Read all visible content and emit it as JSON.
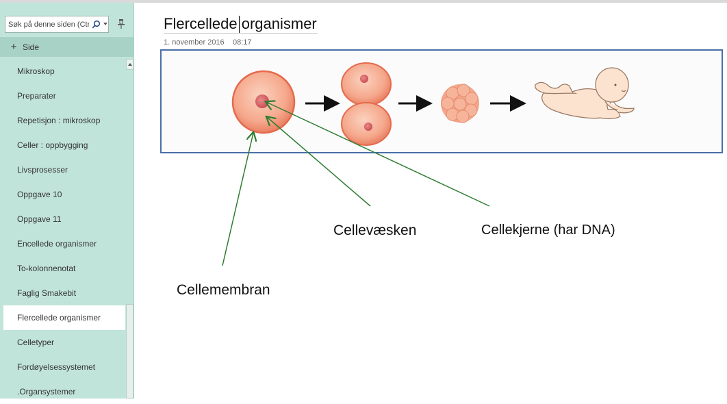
{
  "sidebar": {
    "search_placeholder": "Søk på denne siden (Ctrl+F)",
    "add_page_label": "Side",
    "pages": [
      {
        "label": "Mikroskop"
      },
      {
        "label": "Preparater"
      },
      {
        "label": "Repetisjon : mikroskop"
      },
      {
        "label": "Celler : oppbygging"
      },
      {
        "label": "Livsprosesser"
      },
      {
        "label": "Oppgave 10"
      },
      {
        "label": "Oppgave 11"
      },
      {
        "label": "Encellede organismer"
      },
      {
        "label": "To-kolonnenotat"
      },
      {
        "label": "Faglig Smakebit"
      },
      {
        "label": "Flercellede organismer"
      },
      {
        "label": "Celletyper"
      },
      {
        "label": "Fordøyelsessystemet"
      },
      {
        "label": ".Organsystemer"
      }
    ],
    "selected_page": "Flercellede organismer"
  },
  "page": {
    "title": "Flercellede organismer",
    "date": "1. november 2016",
    "time": "08:17"
  },
  "annotations": {
    "cellevaesken": "Cellevæsken",
    "cellekjerne": "Cellekjerne (har DNA)",
    "cellemembran": "Cellemembran"
  },
  "colors": {
    "sidebar_bg": "#c1e4da",
    "selected_bg": "#ffffff",
    "annotation_arrow": "#2e7d32",
    "figure_border": "#4a6fa8"
  }
}
